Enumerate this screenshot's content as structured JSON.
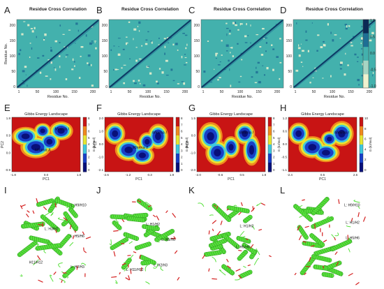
{
  "row1": {
    "panels": [
      {
        "letter": "A",
        "title": "Residue Cross Correlation",
        "xlabel": "Residue No.",
        "ylabel": "Residue No.",
        "xticks": [
          "1",
          "50",
          "100",
          "150",
          "200"
        ],
        "yticks": [
          "0",
          "50",
          "100",
          "150",
          "200"
        ]
      },
      {
        "letter": "B",
        "title": "Residue Cross Correlation",
        "xlabel": "Residue No.",
        "ylabel": "",
        "xticks": [
          "1",
          "50",
          "100",
          "150",
          "200"
        ],
        "yticks": [
          "0",
          "50",
          "100",
          "150",
          "200"
        ]
      },
      {
        "letter": "C",
        "title": "Residue Cross Correlation",
        "xlabel": "Residue No.",
        "ylabel": "",
        "xticks": [
          "1",
          "50",
          "100",
          "150",
          "200"
        ],
        "yticks": [
          "0",
          "50",
          "100",
          "150",
          "200"
        ]
      },
      {
        "letter": "D",
        "title": "Residue Cross Correlation",
        "xlabel": "Residue No.",
        "ylabel": "",
        "xticks": [
          "1",
          "50",
          "100",
          "150",
          "200"
        ],
        "yticks": [
          "0",
          "50",
          "100",
          "150",
          "200"
        ]
      }
    ],
    "colorbar_ticks": [
      "1.0",
      "0.5",
      "0.0",
      "-0.5",
      "-1.0"
    ],
    "colors": {
      "background": "#43b1ad",
      "diagonal": "#0d3b66",
      "positive": "#1e6f94",
      "negative": "#eef2cf"
    }
  },
  "row2": {
    "panels": [
      {
        "letter": "E",
        "title": "Gibbs Energy Landscape",
        "xlabel": "PC1",
        "ylabel": "PC2",
        "cbar_label": "G (kJ/mol)",
        "xticks": [
          "-1.8",
          "0.0",
          "1.8"
        ],
        "yticks": [
          "1.8",
          "0.9",
          "0.0",
          "-0.9"
        ],
        "cbar_ticks": [
          "8",
          "7",
          "6",
          "5",
          "4",
          "3",
          "2",
          "1",
          "0"
        ],
        "minima": [
          "Minima I",
          "Minima II"
        ]
      },
      {
        "letter": "F",
        "title": "Gibbs Energy Landscape",
        "xlabel": "PC1",
        "ylabel": "PC2",
        "cbar_label": "G (kJ/mol)",
        "xticks": [
          "-2.6",
          "-1.2",
          "0.3",
          "1.9"
        ],
        "yticks": [
          "2.0",
          "1.0",
          "0.0",
          "-1.0",
          "-2.1"
        ],
        "cbar_ticks": [
          "8",
          "7",
          "6",
          "5",
          "4",
          "3",
          "2",
          "1",
          "0"
        ],
        "minima": [
          "Minima I",
          "Minima II"
        ]
      },
      {
        "letter": "G",
        "title": "Gibbs Energy Landscape",
        "xlabel": "PC1",
        "ylabel": "PC2",
        "cbar_label": "G (kJ/mol)",
        "xticks": [
          "-2.0",
          "-0.6",
          "0.5",
          "1.8"
        ],
        "yticks": [
          "1.5",
          "0.0",
          "-1.0",
          "-2.0"
        ],
        "cbar_ticks": [
          "8",
          "7",
          "6",
          "5",
          "4",
          "3",
          "2",
          "1",
          "0"
        ],
        "minima": [
          "Minima I"
        ]
      },
      {
        "letter": "H",
        "title": "Gibbs Energy Landscape",
        "xlabel": "PC1",
        "ylabel": "",
        "cbar_label": "G (kJ/mol)",
        "xticks": [
          "-2.4",
          "0.5",
          "2.6"
        ],
        "yticks": [
          "1.2",
          "0.6",
          "0.0",
          "-0.5",
          "-1.1"
        ],
        "cbar_ticks": [
          "10",
          "8",
          "6",
          "4",
          "2",
          "0"
        ],
        "minima": [
          "Minima I"
        ]
      }
    ],
    "colors": {
      "high": "#c81414",
      "mid_high": "#f08a1e",
      "mid": "#e6e632",
      "mid_low": "#3fc8dc",
      "low": "#1840c8",
      "deep": "#08107a"
    }
  },
  "row3": {
    "panels": [
      {
        "letter": "I",
        "labels": [
          "L: H9/H10",
          "L: H3/H2",
          "L: H5/H6",
          "H11/H12",
          "L: H2/H3"
        ]
      },
      {
        "letter": "J",
        "labels": [
          "L: H1/H2",
          "L: H5/H6",
          "L: H11/H12",
          "L: H2/H3"
        ]
      },
      {
        "letter": "K",
        "labels": [
          "L: H1/H2",
          "L: H5/H6"
        ]
      },
      {
        "letter": "L",
        "labels": [
          "L: H9/H10",
          "L: H1/H2",
          "L: H5/H6"
        ]
      }
    ],
    "colors": {
      "helix": "#57e03c",
      "helix_dark": "#2e9e1e",
      "loop": "#d42020"
    }
  }
}
